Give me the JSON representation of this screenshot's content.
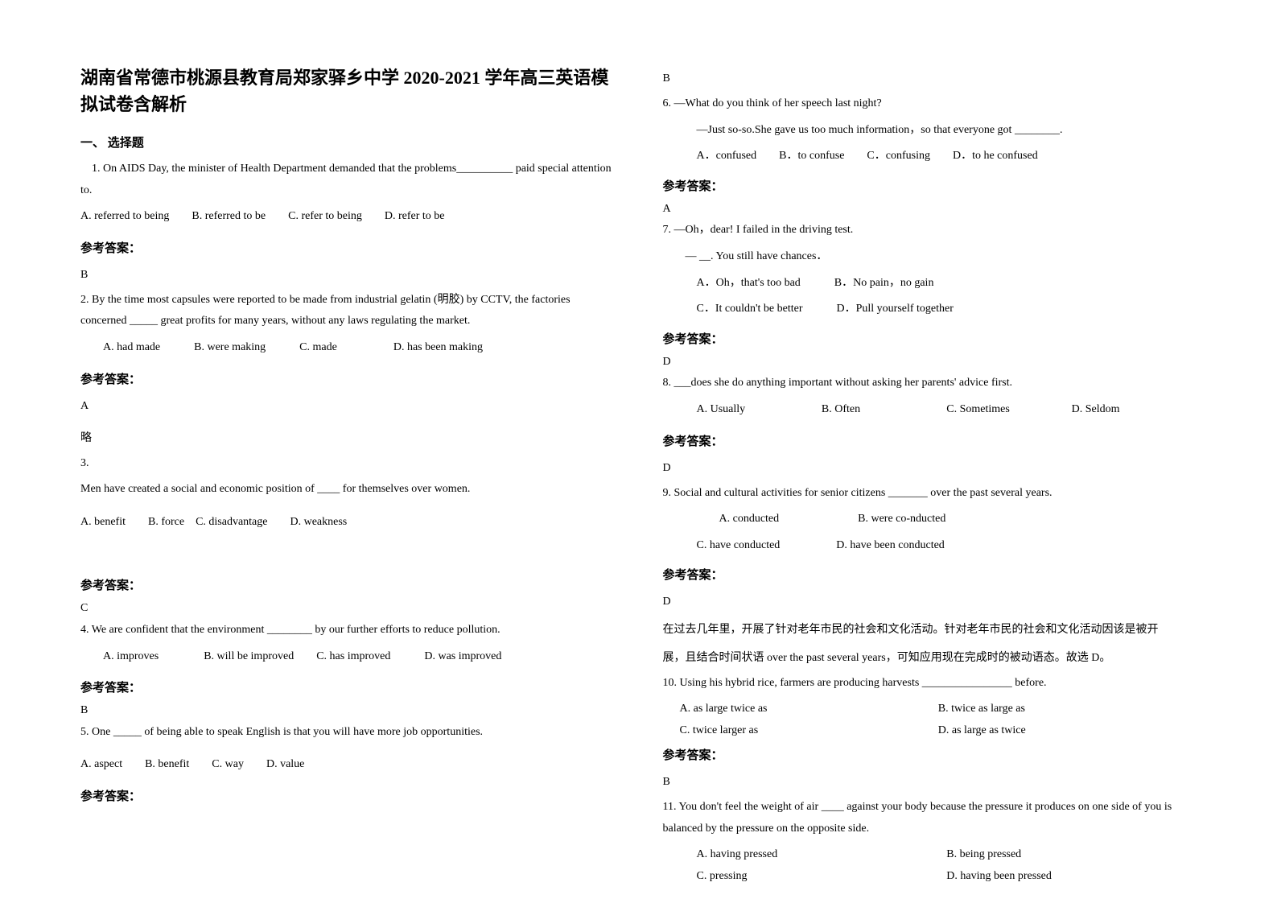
{
  "title": "湖南省常德市桃源县教育局郑家驿乡中学 2020-2021 学年高三英语模拟试卷含解析",
  "section1": "一、 选择题",
  "q1": {
    "text": "　1. On AIDS Day, the minister of Health Department demanded that the problems__________ paid special attention to.",
    "opts": "A. referred to being　　B. referred to be　　C. refer to being　　D. refer to be",
    "label": "参考答案：",
    "ans": "B"
  },
  "q2": {
    "text": "2. By the time most capsules were reported to be made from industrial gelatin (明胶) by CCTV, the factories concerned _____ great profits for many years, without any laws regulating the market.",
    "opts": "　　A. had made　　　B. were making　　　C. made　　　　　D. has been making",
    "label": "参考答案：",
    "ans": "A",
    "note": "略"
  },
  "q3": {
    "num": "3.",
    "text": "Men have created a social and economic position of ____ for themselves over women.",
    "opts": "A. benefit　　B. force　C. disadvantage　　D. weakness",
    "label": "参考答案：",
    "ans": "C"
  },
  "q4": {
    "text": "4. We are confident that the environment ________ by our further efforts to reduce pollution.",
    "opts": "　　A. improves　　　　B. will be improved　　C. has improved　　　D. was improved",
    "label": "参考答案：",
    "ans": "B"
  },
  "q5": {
    "text": "5. One _____ of being able to speak English is that you will have more job opportunities.",
    "opts": "A. aspect　　B. benefit　　C. way　　D. value",
    "label": "参考答案：",
    "ans": "B"
  },
  "q6": {
    "l1": "6. —What do you think of her speech last night?",
    "l2": "　　　—Just so-so.She gave us too much information，so that everyone got ________.",
    "l3": "　　　A．confused　　B．to confuse　　C．confusing　　D．to he confused",
    "label": "参考答案：",
    "ans": "A"
  },
  "q7": {
    "l1": "7. —Oh，dear! I failed in the driving test.",
    "l2": "　　— __. You still have chances．",
    "l3": "　　　A．Oh，that's too bad　　　B．No pain，no gain",
    "l4": "　　　C．It couldn't be better　　　D．Pull yourself together",
    "label": "参考答案：",
    "ans": "D"
  },
  "q8": {
    "text": "8. ___does she do anything important without asking her parents' advice first.",
    "optA": "A. Usually",
    "optB": "B. Often",
    "optC": "C. Sometimes",
    "optD": "D. Seldom",
    "label": "参考答案：",
    "ans": "D"
  },
  "q9": {
    "text": "9. Social and cultural activities for senior citizens _______ over the past several years.",
    "l1": "　　　　　A. conducted　　　　　　　B. were co-nducted",
    "l2": "　　　C. have conducted　　　　　D. have been conducted",
    "label": "参考答案：",
    "ans": "D",
    "exp1": "在过去几年里，开展了针对老年市民的社会和文化活动。针对老年市民的社会和文化活动因该是被开",
    "exp2": "展，且结合时间状语 over the past several years，可知应用现在完成时的被动语态。故选 D。"
  },
  "q10": {
    "text": "10. Using his hybrid rice, farmers are producing harvests ________________ before.",
    "l1a": "A. as large twice as",
    "l1b": "B. twice as large as",
    "l2a": "C. twice larger as",
    "l2b": "D. as large as twice",
    "label": "参考答案：",
    "ans": "B"
  },
  "q11": {
    "text": "11. You don't feel the weight of air ____ against your body because the pressure it produces on one side of you is balanced by the pressure on the opposite side.",
    "l1a": "A. having pressed",
    "l1b": "B. being pressed",
    "l2a": "C. pressing",
    "l2b": "D. having been pressed"
  }
}
